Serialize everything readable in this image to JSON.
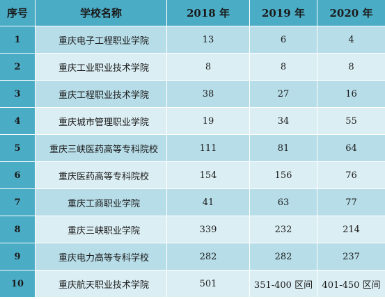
{
  "table": {
    "headers": [
      "序号",
      "学校名称",
      "2018 年",
      "2019 年",
      "2020 年"
    ],
    "rows": [
      {
        "idx": "1",
        "name": "重庆电子工程职业学院",
        "y2018": "13",
        "y2019": "6",
        "y2020": "4"
      },
      {
        "idx": "2",
        "name": "重庆工业职业技术学院",
        "y2018": "8",
        "y2019": "8",
        "y2020": "8"
      },
      {
        "idx": "3",
        "name": "重庆工程职业技术学院",
        "y2018": "38",
        "y2019": "27",
        "y2020": "16"
      },
      {
        "idx": "4",
        "name": "重庆城市管理职业学院",
        "y2018": "19",
        "y2019": "34",
        "y2020": "55"
      },
      {
        "idx": "5",
        "name": "重庆三峡医药高等专科院校",
        "y2018": "111",
        "y2019": "81",
        "y2020": "64"
      },
      {
        "idx": "6",
        "name": "重庆医药高等专科院校",
        "y2018": "154",
        "y2019": "156",
        "y2020": "76"
      },
      {
        "idx": "7",
        "name": "重庆工商职业学院",
        "y2018": "41",
        "y2019": "63",
        "y2020": "77"
      },
      {
        "idx": "8",
        "name": "重庆三峡职业学院",
        "y2018": "339",
        "y2019": "232",
        "y2020": "214"
      },
      {
        "idx": "9",
        "name": "重庆电力高等专科学校",
        "y2018": "282",
        "y2019": "282",
        "y2020": "237"
      },
      {
        "idx": "10",
        "name": "重庆航天职业技术学院",
        "y2018": "501",
        "y2019": "351-400 区间",
        "y2020": "401-450 区间"
      }
    ]
  },
  "colors": {
    "header_bg": "#4bacc6",
    "row_dark": "#b7dde8",
    "row_light": "#dbeef3"
  }
}
